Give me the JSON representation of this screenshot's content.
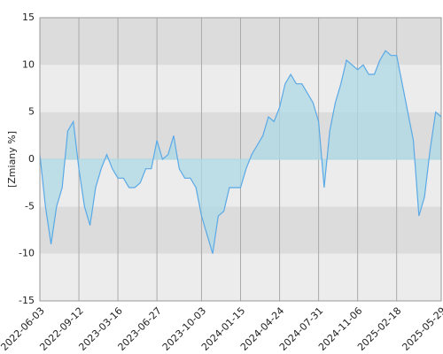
{
  "chart_data": {
    "type": "area",
    "y_label": "[Zmiany %]",
    "categories": [
      "2022-06-03",
      null,
      null,
      null,
      null,
      null,
      null,
      "2022-09-12",
      null,
      null,
      null,
      null,
      null,
      null,
      "2023-03-16",
      null,
      null,
      null,
      null,
      null,
      null,
      "2023-06-27",
      null,
      null,
      null,
      null,
      null,
      null,
      null,
      "2023-10-03",
      null,
      null,
      null,
      null,
      null,
      null,
      "2024-01-15",
      null,
      null,
      null,
      null,
      null,
      null,
      "2024-04-24",
      null,
      null,
      null,
      null,
      null,
      null,
      "2024-07-31",
      null,
      null,
      null,
      null,
      null,
      null,
      "2024-11-06",
      null,
      null,
      null,
      null,
      null,
      null,
      "2025-02-18",
      null,
      null,
      null,
      null,
      null,
      null,
      null,
      "2025-05-29"
    ],
    "values": [
      0.5,
      -5,
      -9,
      -5,
      -3,
      3,
      4,
      -1,
      -5,
      -7,
      -3,
      -1,
      0.5,
      -1,
      -2,
      -2,
      -3,
      -3,
      -2.5,
      -1,
      -1,
      2,
      0,
      0.5,
      2.5,
      -1,
      -2,
      -2,
      -3,
      -6,
      -8,
      -10,
      -6,
      -5.5,
      -3,
      -3,
      -3,
      -1,
      0.5,
      1.5,
      2.5,
      4.5,
      4,
      5.5,
      8,
      9,
      8,
      8,
      7,
      6,
      4,
      -3,
      3,
      6,
      8,
      10.5,
      10,
      9.5,
      10,
      9,
      9,
      10.5,
      11.5,
      11,
      11,
      8,
      5,
      2,
      -6,
      -4,
      1,
      5,
      4.5
    ],
    "line_color": "#5aa9e6",
    "fill_color": "#add8e6",
    "ylim": [
      -15,
      15
    ],
    "yticks": [
      -15,
      -10,
      -5,
      0,
      5,
      10,
      15
    ],
    "grid": true
  }
}
